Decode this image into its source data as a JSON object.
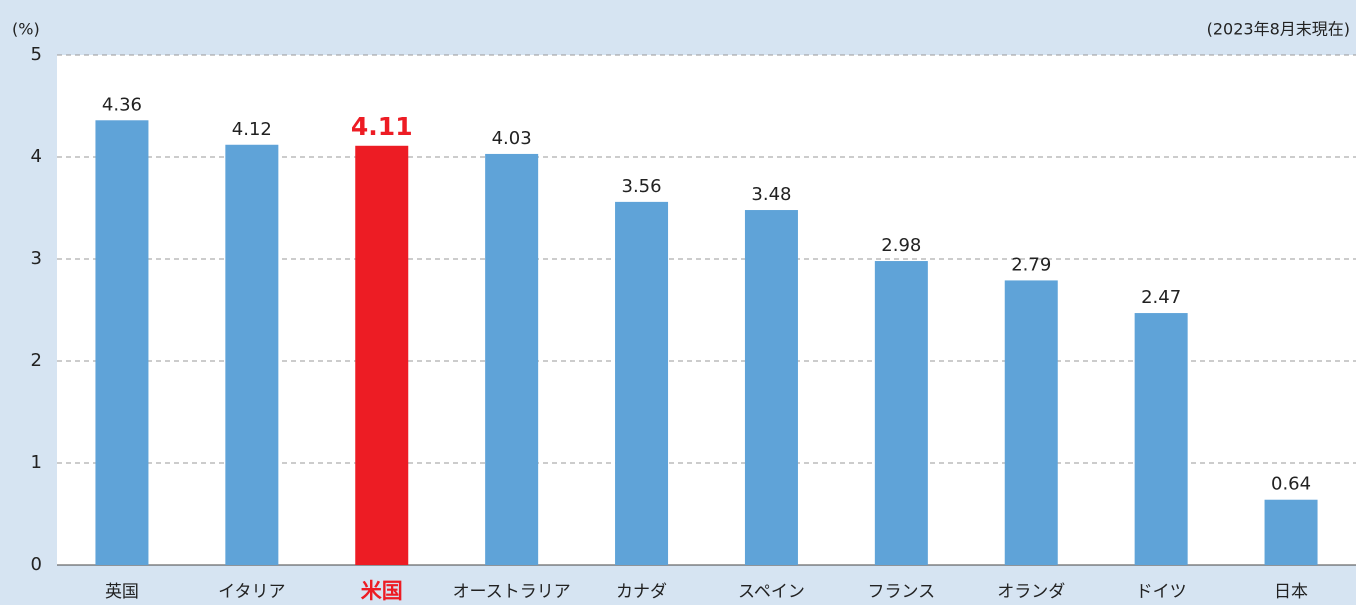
{
  "chart_data": {
    "type": "bar",
    "y_unit": "(%)",
    "note": "(2023年8月末現在)",
    "categories": [
      "英国",
      "イタリア",
      "米国",
      "オーストラリア",
      "カナダ",
      "スペイン",
      "フランス",
      "オランダ",
      "ドイツ",
      "日本"
    ],
    "values": [
      4.36,
      4.12,
      4.11,
      4.03,
      3.56,
      3.48,
      2.98,
      2.79,
      2.47,
      0.64
    ],
    "colors": [
      "#5fa3d8",
      "#5fa3d8",
      "#ed1c24",
      "#5fa3d8",
      "#5fa3d8",
      "#5fa3d8",
      "#5fa3d8",
      "#5fa3d8",
      "#5fa3d8",
      "#5fa3d8"
    ],
    "highlight_color": "#ed1c24",
    "ylim": [
      0,
      5
    ],
    "yticks": [
      0,
      1,
      2,
      3,
      4,
      5
    ],
    "grid": true
  }
}
